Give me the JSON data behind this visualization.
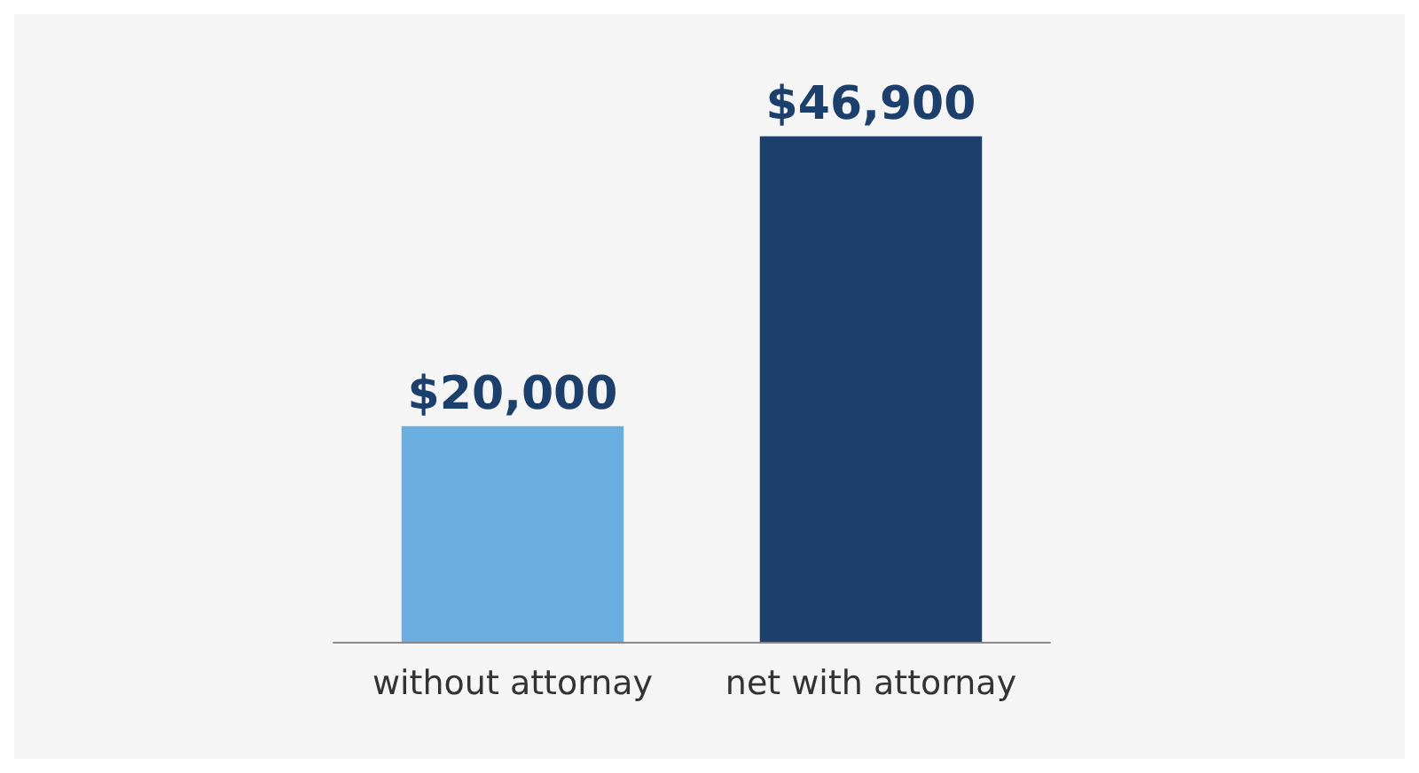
{
  "chart_data": {
    "type": "bar",
    "categories": [
      "without attornay",
      "net with attornay"
    ],
    "values": [
      20000,
      46900
    ],
    "colors": [
      "#6aaee0",
      "#1c3f6b"
    ],
    "value_labels": [
      "$20,000",
      "$46,900"
    ]
  }
}
